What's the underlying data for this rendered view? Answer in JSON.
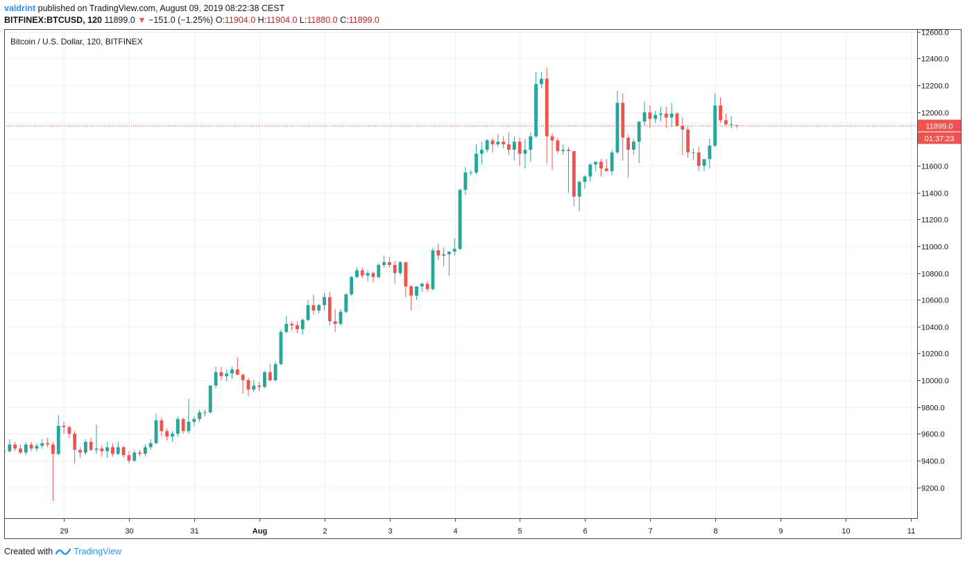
{
  "header": {
    "author": "valdrint",
    "published_text": "published on TradingView.com, August 09, 2019 08:22:38 CEST"
  },
  "symbol_bar": {
    "symbol": "BITFINEX:BTCUSD, 120",
    "last": "11899.0",
    "change": "−151.0 (−1.25%)",
    "o_label": "O:",
    "o_value": "11904.0",
    "h_label": "H:",
    "h_value": "11904.0",
    "l_label": "L:",
    "l_value": "11880.0",
    "c_label": "C:",
    "c_value": "11899.0"
  },
  "footer": {
    "created_with": "Created with",
    "brand": "TradingView"
  },
  "colors": {
    "up": "#26a69a",
    "down": "#ef5350",
    "price_line": "#ef5350",
    "grid": "#e6f0f8",
    "brand": "#2196f3"
  },
  "chart_data": {
    "type": "candlestick",
    "title": "Bitcoin / U.S. Dollar, 120, BITFINEX",
    "last_price_label": "11899.0",
    "countdown_label": "01:37:23",
    "last_price": 11899,
    "y_ticks": [
      9200,
      9400,
      9600,
      9800,
      10000,
      10200,
      10400,
      10600,
      10800,
      11000,
      11200,
      11400,
      11600,
      11800,
      12000,
      12200,
      12400,
      12600
    ],
    "y_tick_labels": [
      "9200.0",
      "9400.0",
      "9600.0",
      "9800.0",
      "10000.0",
      "10200.0",
      "10400.0",
      "10600.0",
      "10800.0",
      "11000.0",
      "11200.0",
      "11400.0",
      "11600.0",
      "11800.0",
      "12000.0",
      "12200.0",
      "12400.0",
      "12600.0"
    ],
    "ylim": [
      8970,
      12620
    ],
    "x_ticks": [
      {
        "label": "29",
        "x": 29
      },
      {
        "label": "30",
        "x": 30
      },
      {
        "label": "31",
        "x": 31
      },
      {
        "label": "Aug",
        "x": 32
      },
      {
        "label": "2",
        "x": 33
      },
      {
        "label": "3",
        "x": 34
      },
      {
        "label": "4",
        "x": 35
      },
      {
        "label": "5",
        "x": 36
      },
      {
        "label": "6",
        "x": 37
      },
      {
        "label": "7",
        "x": 38
      },
      {
        "label": "8",
        "x": 39
      },
      {
        "label": "9",
        "x": 40
      },
      {
        "label": "10",
        "x": 41
      },
      {
        "label": "11",
        "x": 42
      }
    ],
    "xlim": [
      28.08,
      42.1
    ],
    "x_start": 28.08,
    "bars_per_day": 12,
    "candles": [
      [
        9470,
        9480,
        9460,
        9470
      ],
      [
        9470,
        9560,
        9460,
        9520
      ],
      [
        9520,
        9540,
        9470,
        9490
      ],
      [
        9490,
        9520,
        9450,
        9460
      ],
      [
        9460,
        9540,
        9440,
        9520
      ],
      [
        9520,
        9540,
        9470,
        9490
      ],
      [
        9490,
        9530,
        9470,
        9510
      ],
      [
        9510,
        9560,
        9490,
        9530
      ],
      [
        9530,
        9570,
        9500,
        9520
      ],
      [
        9520,
        9540,
        9100,
        9450
      ],
      [
        9450,
        9740,
        9440,
        9660
      ],
      [
        9660,
        9690,
        9600,
        9650
      ],
      [
        9650,
        9660,
        9570,
        9600
      ],
      [
        9600,
        9620,
        9380,
        9480
      ],
      [
        9480,
        9500,
        9420,
        9460
      ],
      [
        9460,
        9560,
        9440,
        9540
      ],
      [
        9540,
        9570,
        9470,
        9480
      ],
      [
        9480,
        9670,
        9450,
        9490
      ],
      [
        9490,
        9510,
        9430,
        9470
      ],
      [
        9470,
        9540,
        9420,
        9500
      ],
      [
        9500,
        9530,
        9430,
        9450
      ],
      [
        9450,
        9540,
        9440,
        9500
      ],
      [
        9500,
        9510,
        9420,
        9440
      ],
      [
        9440,
        9470,
        9380,
        9400
      ],
      [
        9400,
        9480,
        9390,
        9460
      ],
      [
        9460,
        9480,
        9430,
        9450
      ],
      [
        9450,
        9520,
        9430,
        9500
      ],
      [
        9500,
        9560,
        9480,
        9530
      ],
      [
        9530,
        9750,
        9520,
        9700
      ],
      [
        9700,
        9720,
        9580,
        9620
      ],
      [
        9620,
        9640,
        9550,
        9580
      ],
      [
        9580,
        9620,
        9540,
        9600
      ],
      [
        9600,
        9730,
        9580,
        9710
      ],
      [
        9710,
        9720,
        9600,
        9620
      ],
      [
        9620,
        9860,
        9600,
        9690
      ],
      [
        9690,
        9730,
        9660,
        9710
      ],
      [
        9710,
        9780,
        9690,
        9760
      ],
      [
        9760,
        9780,
        9730,
        9760
      ],
      [
        9760,
        9960,
        9750,
        9960
      ],
      [
        9960,
        10100,
        9940,
        10060
      ],
      [
        10060,
        10100,
        10000,
        10030
      ],
      [
        10030,
        10080,
        9990,
        10050
      ],
      [
        10050,
        10100,
        10010,
        10080
      ],
      [
        10080,
        10170,
        10040,
        10040
      ],
      [
        10040,
        10050,
        9900,
        10000
      ],
      [
        10000,
        10020,
        9880,
        9930
      ],
      [
        9930,
        10000,
        9910,
        9960
      ],
      [
        9960,
        9990,
        9920,
        9950
      ],
      [
        9950,
        10070,
        9940,
        10060
      ],
      [
        10060,
        10120,
        9990,
        10000
      ],
      [
        10000,
        10140,
        9990,
        10120
      ],
      [
        10120,
        10380,
        10110,
        10360
      ],
      [
        10360,
        10480,
        10350,
        10420
      ],
      [
        10420,
        10440,
        10370,
        10410
      ],
      [
        10410,
        10440,
        10350,
        10380
      ],
      [
        10380,
        10460,
        10340,
        10450
      ],
      [
        10450,
        10600,
        10440,
        10560
      ],
      [
        10560,
        10640,
        10490,
        10520
      ],
      [
        10520,
        10570,
        10500,
        10560
      ],
      [
        10560,
        10650,
        10520,
        10620
      ],
      [
        10620,
        10660,
        10410,
        10440
      ],
      [
        10440,
        10530,
        10360,
        10420
      ],
      [
        10420,
        10530,
        10410,
        10510
      ],
      [
        10510,
        10650,
        10500,
        10640
      ],
      [
        10640,
        10780,
        10630,
        10770
      ],
      [
        10770,
        10840,
        10760,
        10820
      ],
      [
        10820,
        10840,
        10760,
        10780
      ],
      [
        10780,
        10820,
        10740,
        10800
      ],
      [
        10800,
        10810,
        10730,
        10770
      ],
      [
        10770,
        10870,
        10760,
        10860
      ],
      [
        10860,
        10930,
        10840,
        10880
      ],
      [
        10880,
        10920,
        10840,
        10860
      ],
      [
        10860,
        10890,
        10720,
        10800
      ],
      [
        10800,
        10890,
        10780,
        10880
      ],
      [
        10880,
        10880,
        10620,
        10700
      ],
      [
        10700,
        10710,
        10520,
        10630
      ],
      [
        10630,
        10700,
        10600,
        10700
      ],
      [
        10700,
        10730,
        10660,
        10720
      ],
      [
        10720,
        10740,
        10660,
        10680
      ],
      [
        10680,
        10990,
        10670,
        10970
      ],
      [
        10970,
        11020,
        10900,
        10930
      ],
      [
        10930,
        10990,
        10850,
        10940
      ],
      [
        10940,
        10960,
        10780,
        10960
      ],
      [
        10960,
        11060,
        10930,
        10980
      ],
      [
        10980,
        11430,
        10970,
        11420
      ],
      [
        11420,
        11590,
        11380,
        11550
      ],
      [
        11550,
        11570,
        11530,
        11550
      ],
      [
        11550,
        11760,
        11540,
        11690
      ],
      [
        11690,
        11780,
        11610,
        11720
      ],
      [
        11720,
        11800,
        11700,
        11790
      ],
      [
        11790,
        11810,
        11700,
        11760
      ],
      [
        11760,
        11840,
        11740,
        11780
      ],
      [
        11780,
        11820,
        11730,
        11760
      ],
      [
        11760,
        11850,
        11680,
        11720
      ],
      [
        11720,
        11820,
        11640,
        11780
      ],
      [
        11780,
        11810,
        11600,
        11690
      ],
      [
        11690,
        11800,
        11580,
        11720
      ],
      [
        11720,
        11850,
        11630,
        11820
      ],
      [
        11820,
        12300,
        11810,
        12210
      ],
      [
        12210,
        12300,
        12180,
        12250
      ],
      [
        12250,
        12330,
        11620,
        11820
      ],
      [
        11820,
        11840,
        11570,
        11790
      ],
      [
        11790,
        11810,
        11690,
        11710
      ],
      [
        11710,
        11760,
        11680,
        11720
      ],
      [
        11720,
        11740,
        11400,
        11710
      ],
      [
        11710,
        11710,
        11300,
        11370
      ],
      [
        11370,
        11490,
        11260,
        11480
      ],
      [
        11480,
        11530,
        11430,
        11520
      ],
      [
        11520,
        11620,
        11480,
        11610
      ],
      [
        11610,
        11620,
        11560,
        11630
      ],
      [
        11630,
        11650,
        11520,
        11580
      ],
      [
        11580,
        11650,
        11560,
        11560
      ],
      [
        11560,
        11720,
        11530,
        11700
      ],
      [
        11700,
        12160,
        11690,
        12070
      ],
      [
        12070,
        12140,
        11640,
        11810
      ],
      [
        11810,
        11830,
        11510,
        11720
      ],
      [
        11720,
        11800,
        11680,
        11780
      ],
      [
        11780,
        11910,
        11620,
        11930
      ],
      [
        11930,
        12080,
        11900,
        12000
      ],
      [
        12000,
        12050,
        11880,
        11950
      ],
      [
        11950,
        12010,
        11920,
        11980
      ],
      [
        11980,
        12040,
        11930,
        11990
      ],
      [
        11990,
        12040,
        11880,
        11960
      ],
      [
        11960,
        12070,
        11890,
        11990
      ],
      [
        11990,
        12000,
        11890,
        11900
      ],
      [
        11900,
        11960,
        11680,
        11870
      ],
      [
        11870,
        11890,
        11660,
        11700
      ],
      [
        11700,
        11730,
        11640,
        11700
      ],
      [
        11700,
        11740,
        11560,
        11600
      ],
      [
        11600,
        11640,
        11560,
        11650
      ],
      [
        11650,
        11800,
        11580,
        11750
      ],
      [
        11750,
        12140,
        11740,
        12050
      ],
      [
        12050,
        12110,
        11920,
        11940
      ],
      [
        11940,
        11990,
        11900,
        11910
      ],
      [
        11910,
        11970,
        11880,
        11910
      ],
      [
        11904,
        11904,
        11880,
        11899
      ]
    ]
  }
}
